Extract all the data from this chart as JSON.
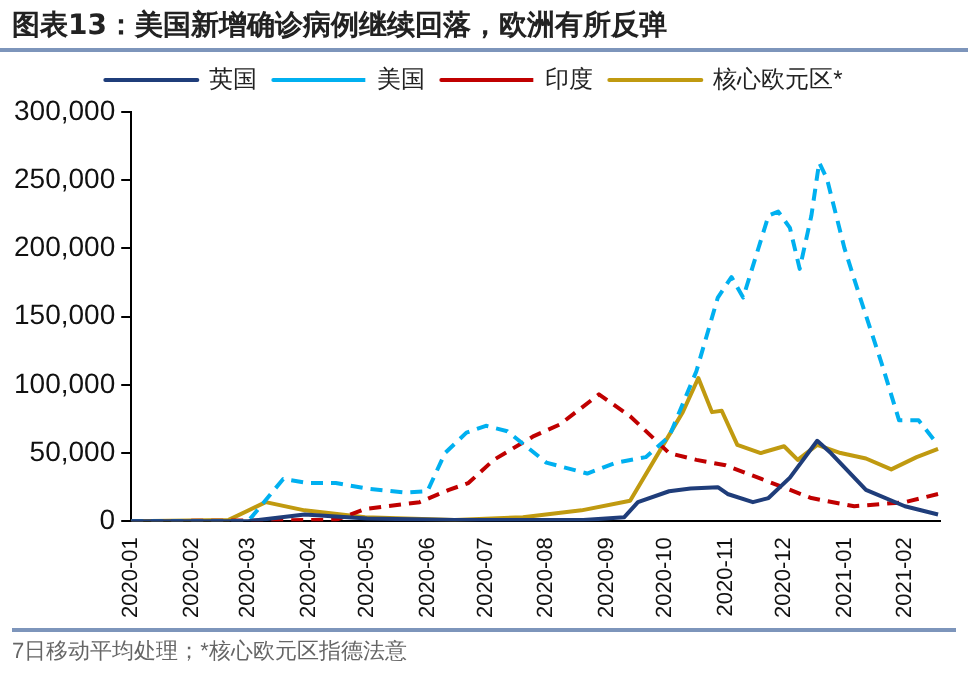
{
  "chart_data": {
    "type": "line",
    "title": "图表13：美国新增确诊病例继续回落，欧洲有所反弹",
    "annotations": [
      "7日移动平均处理；*核心欧元区指德法意"
    ],
    "legend": "top",
    "grid": false,
    "marker": "none",
    "xlim": [
      "2020-01-01",
      "2021-02-19"
    ],
    "xticks": [
      "2020-01",
      "2020-02",
      "2020-03",
      "2020-04",
      "2020-05",
      "2020-06",
      "2020-07",
      "2020-08",
      "2020-09",
      "2020-10",
      "2020-11",
      "2020-12",
      "2021-01",
      "2021-02"
    ],
    "ylim": [
      0,
      300000
    ],
    "yticks": [
      0,
      {
        "value": 50000,
        "label": "50,000"
      },
      {
        "value": 100000,
        "label": "100,000"
      },
      {
        "value": 150000,
        "label": "150,000"
      },
      {
        "value": 200000,
        "label": "200,000"
      },
      {
        "value": 250000,
        "label": "250,000"
      },
      {
        "value": 300000,
        "label": "300,000"
      }
    ],
    "series": [
      {
        "name": "英国",
        "color": "#1f3d7a",
        "line_style": "solid",
        "x": [
          "2020-01-01",
          "2020-03-01",
          "2020-03-30",
          "2020-05-01",
          "2020-06-15",
          "2020-08-20",
          "2020-09-10",
          "2020-09-17",
          "2020-10-03",
          "2020-10-14",
          "2020-10-28",
          "2020-11-02",
          "2020-11-15",
          "2020-11-23",
          "2020-12-04",
          "2020-12-18",
          "2020-12-25",
          "2021-01-12",
          "2021-02-01",
          "2021-02-18"
        ],
        "values": [
          0,
          0,
          5000,
          2000,
          1000,
          1000,
          3000,
          14000,
          22000,
          24000,
          25000,
          20000,
          14000,
          17000,
          32000,
          59000,
          50000,
          23000,
          11000,
          5000
        ]
      },
      {
        "name": "美国",
        "color": "#00b0f0",
        "line_style": "dashed",
        "x": [
          "2020-01-01",
          "2020-03-01",
          "2020-03-19",
          "2020-04-01",
          "2020-04-15",
          "2020-05-01",
          "2020-05-21",
          "2020-06-01",
          "2020-06-10",
          "2020-06-21",
          "2020-07-01",
          "2020-07-12",
          "2020-08-01",
          "2020-08-22",
          "2020-09-06",
          "2020-09-21",
          "2020-10-03",
          "2020-10-17",
          "2020-10-28",
          "2020-11-04",
          "2020-11-10",
          "2020-11-23",
          "2020-11-28",
          "2020-12-04",
          "2020-12-09",
          "2020-12-15",
          "2020-12-19",
          "2020-12-23",
          "2021-01-01",
          "2021-01-09",
          "2021-01-20",
          "2021-01-29",
          "2021-02-08",
          "2021-02-18"
        ],
        "values": [
          0,
          0,
          31000,
          28000,
          28000,
          24000,
          21000,
          22000,
          50000,
          65000,
          70000,
          66000,
          43000,
          35000,
          43000,
          47000,
          62000,
          110000,
          164000,
          179000,
          164000,
          224000,
          227000,
          215000,
          185000,
          224000,
          263000,
          251000,
          200000,
          164000,
          116000,
          74000,
          74000,
          56000
        ]
      },
      {
        "name": "印度",
        "color": "#c00000",
        "line_style": "dashed",
        "x": [
          "2020-01-01",
          "2020-04-15",
          "2020-04-30",
          "2020-05-28",
          "2020-06-12",
          "2020-06-22",
          "2020-07-05",
          "2020-07-25",
          "2020-08-08",
          "2020-08-28",
          "2020-09-13",
          "2020-10-03",
          "2020-10-17",
          "2020-11-01",
          "2020-11-23",
          "2020-12-15",
          "2021-01-06",
          "2021-02-01",
          "2021-02-18"
        ],
        "values": [
          0,
          1000,
          9000,
          14000,
          23000,
          28000,
          45000,
          62000,
          71000,
          93000,
          77000,
          50000,
          45000,
          41000,
          29000,
          17000,
          11000,
          14000,
          20000
        ]
      },
      {
        "name": "核心欧元区*",
        "color": "#c09a10",
        "line_style": "solid",
        "x": [
          "2020-01-01",
          "2020-02-20",
          "2020-03-10",
          "2020-03-30",
          "2020-04-30",
          "2020-06-15",
          "2020-07-20",
          "2020-08-19",
          "2020-09-13",
          "2020-10-10",
          "2020-10-18",
          "2020-10-25",
          "2020-10-30",
          "2020-11-07",
          "2020-11-19",
          "2020-12-01",
          "2020-12-08",
          "2020-12-18",
          "2020-12-30",
          "2021-01-12",
          "2021-01-25",
          "2021-02-07",
          "2021-02-18"
        ],
        "values": [
          0,
          1000,
          14000,
          8000,
          3000,
          1000,
          3000,
          8000,
          15000,
          80000,
          105000,
          80000,
          81000,
          56000,
          50000,
          55000,
          45000,
          56000,
          50000,
          46000,
          38000,
          47000,
          53000
        ]
      }
    ]
  }
}
